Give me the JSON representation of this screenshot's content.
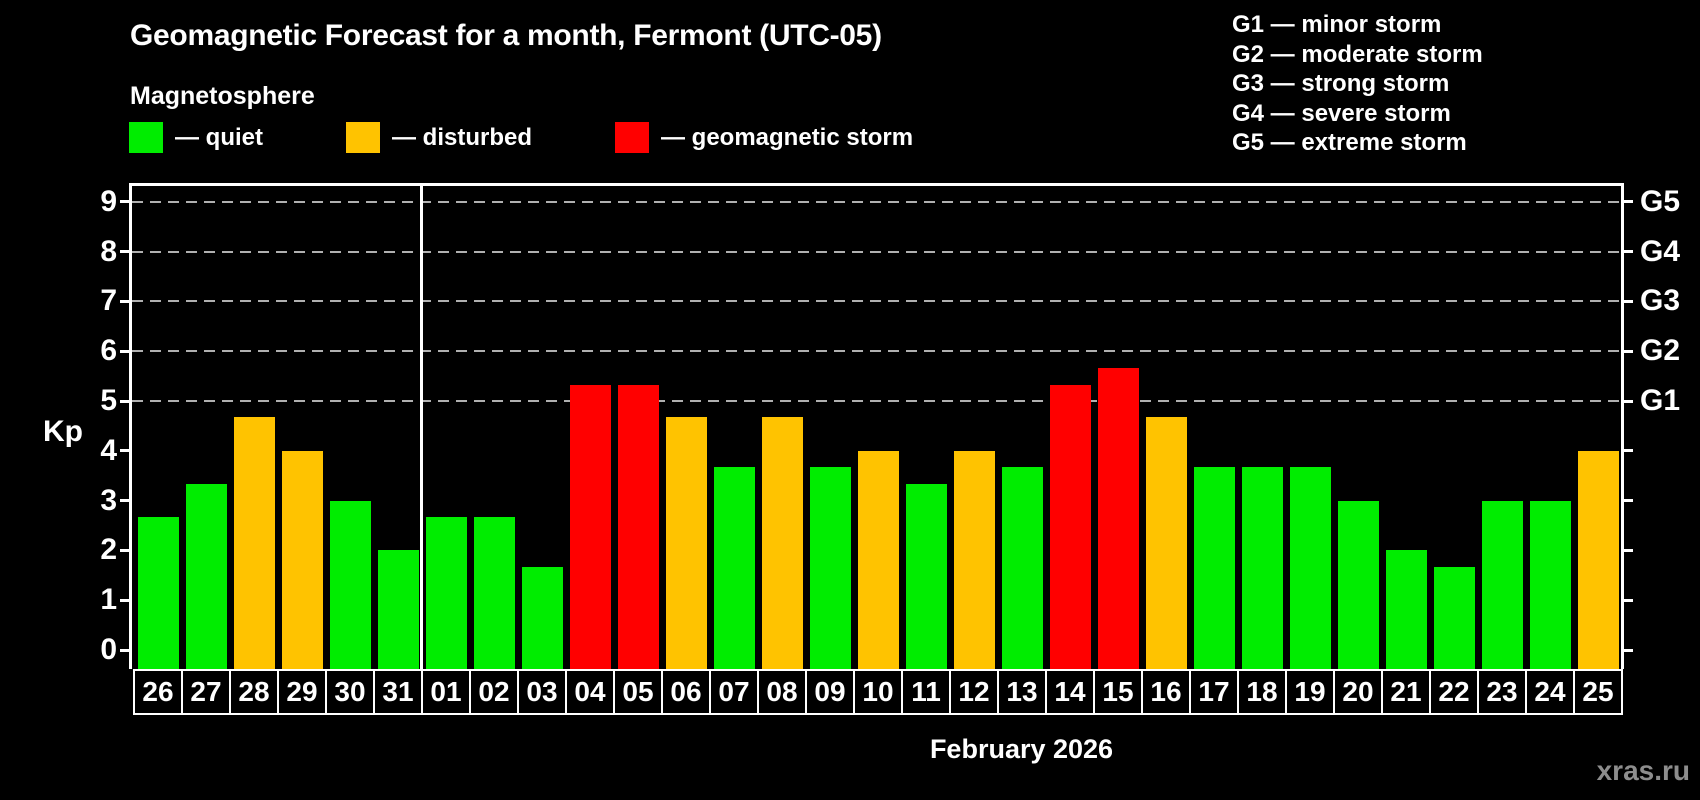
{
  "title": "Geomagnetic Forecast for a month, Fermont (UTC-05)",
  "subtitle": "Magnetosphere",
  "legend": {
    "items": [
      {
        "key": "quiet",
        "swatch_color": "#00ed00",
        "label": "— quiet"
      },
      {
        "key": "disturbed",
        "swatch_color": "#ffc300",
        "label": "— disturbed"
      },
      {
        "key": "storm",
        "swatch_color": "#ff0000",
        "label": "— geomagnetic storm"
      }
    ]
  },
  "g_scale_legend": {
    "lines": [
      "G1 — minor storm",
      "G2 — moderate storm",
      "G3 — strong storm",
      "G4 — severe storm",
      "G5 — extreme storm"
    ]
  },
  "axes": {
    "y_label": "Kp",
    "y_ticks": [
      "0",
      "1",
      "2",
      "3",
      "4",
      "5",
      "6",
      "7",
      "8",
      "9"
    ],
    "right_axis_labels": [
      {
        "label": "G1",
        "kp": 5
      },
      {
        "label": "G2",
        "kp": 6
      },
      {
        "label": "G3",
        "kp": 7
      },
      {
        "label": "G4",
        "kp": 8
      },
      {
        "label": "G5",
        "kp": 9
      }
    ],
    "x_caption": "February 2026"
  },
  "watermark": "xras.ru",
  "chart_data": {
    "type": "bar",
    "title": "Geomagnetic Forecast for a month, Fermont (UTC-05)",
    "ylabel": "Kp",
    "ylim": [
      0,
      9.5
    ],
    "grid_kp_levels": [
      5,
      6,
      7,
      8,
      9
    ],
    "legend_position": "top-left",
    "month_separator_after_index": 5,
    "categories": [
      "26",
      "27",
      "28",
      "29",
      "30",
      "31",
      "01",
      "02",
      "03",
      "04",
      "05",
      "06",
      "07",
      "08",
      "09",
      "10",
      "11",
      "12",
      "13",
      "14",
      "15",
      "16",
      "17",
      "18",
      "19",
      "20",
      "21",
      "22",
      "23",
      "24",
      "25"
    ],
    "values": [
      2.67,
      3.33,
      4.67,
      4,
      3,
      2,
      2.67,
      2.67,
      1.67,
      5.33,
      5.33,
      4.67,
      3.67,
      4.67,
      3.67,
      4,
      3.33,
      4,
      3.67,
      5.33,
      5.67,
      4.67,
      3.67,
      3.67,
      3.67,
      3,
      2,
      1.67,
      3,
      3,
      4
    ],
    "statuses": [
      "quiet",
      "quiet",
      "disturbed",
      "disturbed",
      "quiet",
      "quiet",
      "quiet",
      "quiet",
      "quiet",
      "storm",
      "storm",
      "disturbed",
      "quiet",
      "disturbed",
      "quiet",
      "disturbed",
      "quiet",
      "disturbed",
      "quiet",
      "storm",
      "storm",
      "disturbed",
      "quiet",
      "quiet",
      "quiet",
      "quiet",
      "quiet",
      "quiet",
      "quiet",
      "quiet",
      "disturbed"
    ],
    "status_colors": {
      "quiet": "#00ed00",
      "disturbed": "#ffc300",
      "storm": "#ff0000"
    }
  }
}
